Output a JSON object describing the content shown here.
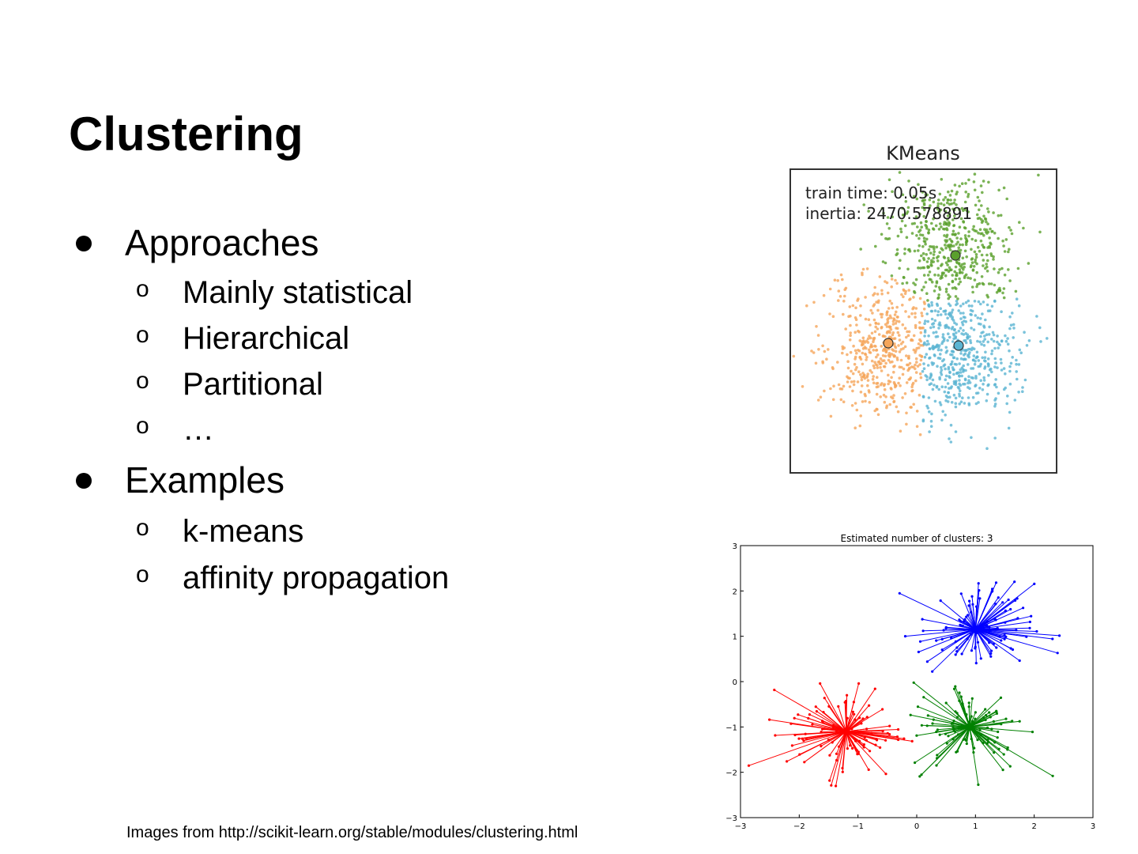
{
  "slide": {
    "title": "Clustering",
    "bullets": [
      {
        "label": "Approaches",
        "sub": [
          "Mainly statistical",
          "Hierarchical",
          "Partitional",
          "…"
        ]
      },
      {
        "label": "Examples",
        "sub": [
          "k-means",
          "affinity propagation"
        ]
      }
    ],
    "sub_marker": "o",
    "footer": "Images from http://scikit-learn.org/stable/modules/clustering.html"
  },
  "chart_data": [
    {
      "type": "scatter",
      "title": "KMeans",
      "annotations": [
        "train time: 0.05s",
        "inertia: 2470.578891"
      ],
      "clusters": [
        {
          "name": "green",
          "color": "#5aa02c"
        },
        {
          "name": "orange",
          "color": "#f5a55a"
        },
        {
          "name": "blue",
          "color": "#5ab4d2"
        }
      ]
    },
    {
      "type": "scatter",
      "title": "Estimated number of clusters: 3",
      "xlim": [
        -3,
        3
      ],
      "ylim": [
        -3,
        3
      ],
      "xticks": [
        "−3",
        "−2",
        "−1",
        "0",
        "1",
        "2",
        "3"
      ],
      "yticks": [
        "3",
        "2",
        "1",
        "0",
        "−1",
        "−2",
        "−3"
      ],
      "clusters": [
        {
          "name": "blue",
          "color": "#0000ff",
          "center": [
            1.0,
            1.15
          ]
        },
        {
          "name": "red",
          "color": "#ff0000",
          "center": [
            -1.2,
            -1.1
          ]
        },
        {
          "name": "green",
          "color": "#008000",
          "center": [
            0.9,
            -1.0
          ]
        }
      ]
    }
  ]
}
